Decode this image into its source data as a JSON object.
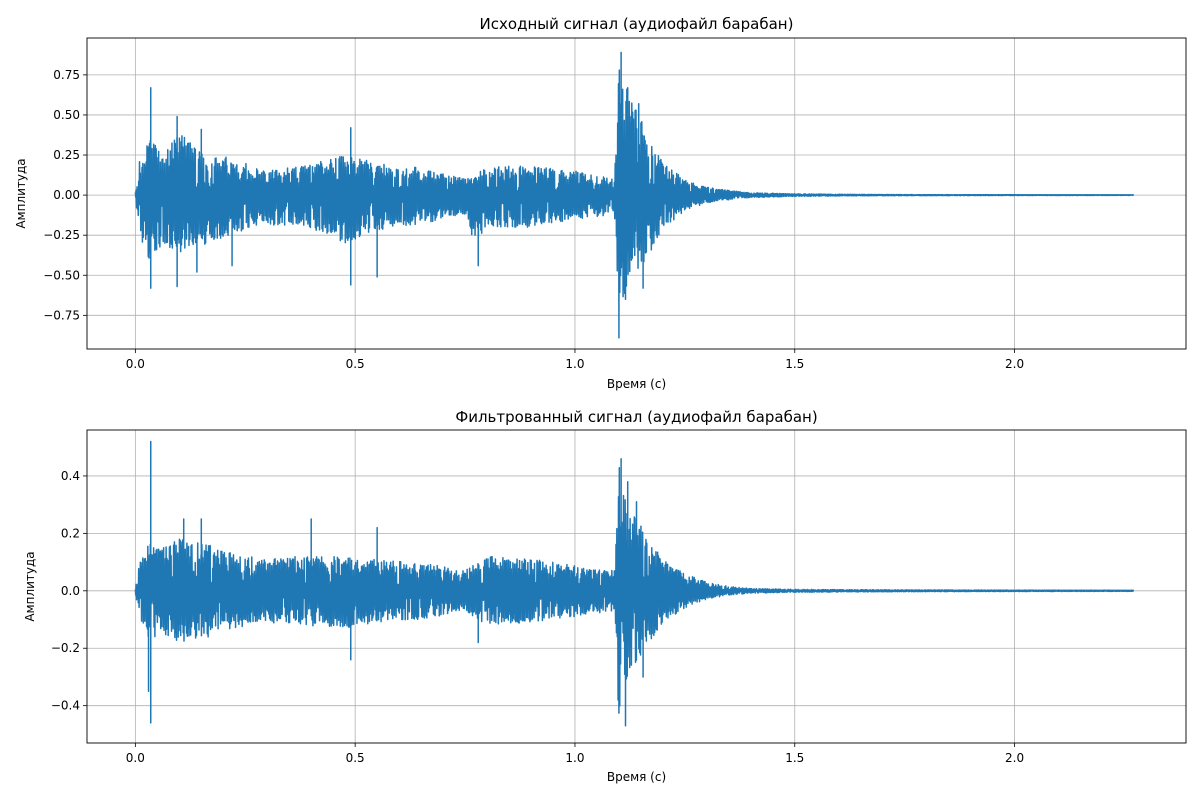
{
  "chart_data": [
    {
      "type": "line",
      "title": "Исходный сигнал (аудиофайл барабан)",
      "xlabel": "Время (с)",
      "ylabel": "Амплитуда",
      "xlim": [
        -0.11,
        2.39
      ],
      "ylim": [
        -0.96,
        0.98
      ],
      "xticks": [
        0.0,
        0.5,
        1.0,
        1.5,
        2.0
      ],
      "xtick_labels": [
        "0.0",
        "0.5",
        "1.0",
        "1.5",
        "2.0"
      ],
      "yticks": [
        -0.75,
        -0.5,
        -0.25,
        0.0,
        0.25,
        0.5,
        0.75
      ],
      "ytick_labels": [
        "−0.75",
        "−0.50",
        "−0.25",
        "0.00",
        "0.25",
        "0.50",
        "0.75"
      ],
      "grid": true,
      "line_color": "#1f77b4",
      "series": [
        {
          "x_start": 0.0,
          "x_end": 2.27,
          "envelope_breakpoints": {
            "t": [
              0.0,
              0.01,
              0.03,
              0.06,
              0.1,
              0.15,
              0.22,
              0.3,
              0.37,
              0.48,
              0.55,
              0.65,
              0.75,
              0.77,
              0.8,
              0.9,
              1.0,
              1.09,
              1.1,
              1.11,
              1.13,
              1.16,
              1.2,
              1.25,
              1.3,
              1.35,
              1.4,
              1.5,
              1.6,
              1.8,
              2.27
            ],
            "upper": [
              0.02,
              0.22,
              0.35,
              0.28,
              0.38,
              0.3,
              0.23,
              0.15,
              0.18,
              0.25,
              0.2,
              0.17,
              0.1,
              0.12,
              0.18,
              0.18,
              0.15,
              0.1,
              0.85,
              0.7,
              0.62,
              0.4,
              0.2,
              0.1,
              0.05,
              0.03,
              0.015,
              0.008,
              0.005,
              0.003,
              0.002
            ],
            "lower": [
              -0.02,
              -0.25,
              -0.4,
              -0.32,
              -0.38,
              -0.32,
              -0.24,
              -0.2,
              -0.18,
              -0.3,
              -0.22,
              -0.18,
              -0.12,
              -0.3,
              -0.2,
              -0.2,
              -0.15,
              -0.12,
              -0.88,
              -0.68,
              -0.5,
              -0.42,
              -0.22,
              -0.1,
              -0.05,
              -0.03,
              -0.015,
              -0.008,
              -0.005,
              -0.003,
              -0.002
            ]
          },
          "spikes": [
            {
              "x": 0.035,
              "y": 0.67
            },
            {
              "x": 0.035,
              "y": -0.58
            },
            {
              "x": 0.095,
              "y": 0.49
            },
            {
              "x": 0.095,
              "y": -0.57
            },
            {
              "x": 0.15,
              "y": 0.41
            },
            {
              "x": 0.14,
              "y": -0.48
            },
            {
              "x": 0.22,
              "y": -0.44
            },
            {
              "x": 0.49,
              "y": 0.42
            },
            {
              "x": 0.49,
              "y": -0.56
            },
            {
              "x": 0.55,
              "y": -0.51
            },
            {
              "x": 0.78,
              "y": -0.44
            },
            {
              "x": 1.105,
              "y": 0.89
            },
            {
              "x": 1.1,
              "y": -0.89
            },
            {
              "x": 1.115,
              "y": -0.65
            },
            {
              "x": 1.12,
              "y": 0.67
            },
            {
              "x": 1.145,
              "y": 0.57
            },
            {
              "x": 1.155,
              "y": -0.58
            }
          ]
        }
      ]
    },
    {
      "type": "line",
      "title": "Фильтрованный сигнал (аудиофайл барабан)",
      "xlabel": "Время (с)",
      "ylabel": "Амплитуда",
      "xlim": [
        -0.11,
        2.39
      ],
      "ylim": [
        -0.53,
        0.56
      ],
      "xticks": [
        0.0,
        0.5,
        1.0,
        1.5,
        2.0
      ],
      "xtick_labels": [
        "0.0",
        "0.5",
        "1.0",
        "1.5",
        "2.0"
      ],
      "yticks": [
        -0.4,
        -0.2,
        0.0,
        0.2,
        0.4
      ],
      "ytick_labels": [
        "−0.4",
        "−0.2",
        "0.0",
        "0.2",
        "0.4"
      ],
      "grid": true,
      "line_color": "#1f77b4",
      "series": [
        {
          "x_start": 0.0,
          "x_end": 2.27,
          "envelope_breakpoints": {
            "t": [
              0.0,
              0.01,
              0.03,
              0.06,
              0.1,
              0.15,
              0.22,
              0.3,
              0.37,
              0.48,
              0.55,
              0.65,
              0.75,
              0.77,
              0.8,
              0.9,
              1.0,
              1.09,
              1.1,
              1.11,
              1.13,
              1.16,
              1.2,
              1.25,
              1.3,
              1.35,
              1.4,
              1.5,
              1.6,
              1.8,
              2.27
            ],
            "upper": [
              0.01,
              0.1,
              0.17,
              0.15,
              0.18,
              0.17,
              0.13,
              0.11,
              0.12,
              0.12,
              0.11,
              0.1,
              0.07,
              0.09,
              0.12,
              0.11,
              0.09,
              0.07,
              0.46,
              0.35,
              0.28,
              0.2,
              0.11,
              0.06,
              0.03,
              0.015,
              0.008,
              0.005,
              0.004,
              0.003,
              0.002
            ],
            "lower": [
              -0.01,
              -0.1,
              -0.17,
              -0.15,
              -0.18,
              -0.17,
              -0.13,
              -0.11,
              -0.12,
              -0.13,
              -0.11,
              -0.1,
              -0.07,
              -0.09,
              -0.12,
              -0.11,
              -0.09,
              -0.07,
              -0.47,
              -0.35,
              -0.28,
              -0.2,
              -0.11,
              -0.06,
              -0.03,
              -0.015,
              -0.008,
              -0.005,
              -0.004,
              -0.003,
              -0.002
            ]
          },
          "spikes": [
            {
              "x": 0.035,
              "y": 0.52
            },
            {
              "x": 0.035,
              "y": -0.46
            },
            {
              "x": 0.03,
              "y": -0.35
            },
            {
              "x": 0.11,
              "y": 0.25
            },
            {
              "x": 0.15,
              "y": 0.25
            },
            {
              "x": 0.4,
              "y": 0.25
            },
            {
              "x": 0.49,
              "y": -0.24
            },
            {
              "x": 0.55,
              "y": 0.22
            },
            {
              "x": 0.78,
              "y": -0.18
            },
            {
              "x": 1.105,
              "y": 0.46
            },
            {
              "x": 1.115,
              "y": -0.47
            },
            {
              "x": 1.12,
              "y": 0.38
            },
            {
              "x": 1.14,
              "y": 0.31
            },
            {
              "x": 1.155,
              "y": -0.3
            }
          ]
        }
      ]
    }
  ]
}
